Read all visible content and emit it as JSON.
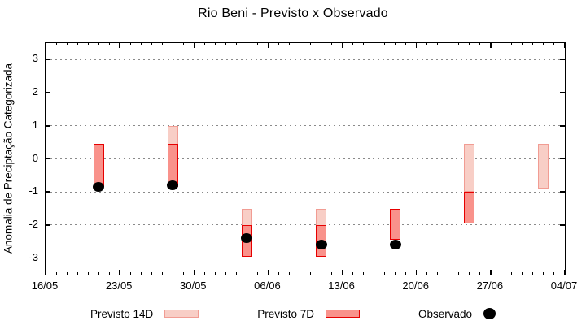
{
  "title": "Rio Beni - Previsto x Observado",
  "chart_data": {
    "type": "bar",
    "subtype": "forecast-range-bars-with-observed-scatter",
    "title": "Rio Beni - Previsto x Observado",
    "xlabel": "",
    "ylabel": "Anomalia de Preciptação Categorizada",
    "ylim": [
      -3.5,
      3.5
    ],
    "yticks": [
      3,
      2,
      1,
      0,
      -1,
      -2,
      -3
    ],
    "x_axis": {
      "start_label": "16/05",
      "end_label": "04/07",
      "range_days": [
        0,
        49
      ],
      "major_tick_days": [
        0,
        7,
        14,
        21,
        28,
        35,
        42,
        49
      ],
      "tick_labels": [
        "16/05",
        "23/05",
        "30/05",
        "06/06",
        "13/06",
        "20/06",
        "27/06",
        "04/07"
      ],
      "minor_tick_interval_days": 1
    },
    "grid": "horizontal dotted",
    "legend_position": "bottom",
    "colors": {
      "previsto14_fill": "#f8cec6",
      "previsto14_border": "#f19c93",
      "previsto7_fill": "#f9928b",
      "previsto7_border": "#e60000",
      "observado": "#000000",
      "gridline": "#8a8a8a"
    },
    "series": [
      {
        "name": "Previsto 14D",
        "type": "range_bar",
        "fill": "#f8cec6",
        "border": "#f19c93",
        "points": [
          {
            "date": "28/05",
            "day": 12,
            "high": 1.0,
            "low": -0.85
          },
          {
            "date": "04/06",
            "day": 19,
            "high": -1.5,
            "low": -2.95
          },
          {
            "date": "11/06",
            "day": 26,
            "high": -1.5,
            "low": -2.95
          },
          {
            "date": "25/06",
            "day": 40,
            "high": 0.45,
            "low": -1.0
          },
          {
            "date": "02/07",
            "day": 47,
            "high": 0.45,
            "low": -0.9
          }
        ]
      },
      {
        "name": "Previsto 7D",
        "type": "range_bar",
        "fill": "#f9928b",
        "border": "#e60000",
        "points": [
          {
            "date": "21/05",
            "day": 5,
            "high": 0.45,
            "low": -0.85
          },
          {
            "date": "28/05",
            "day": 12,
            "high": 0.45,
            "low": -0.85
          },
          {
            "date": "04/06",
            "day": 19,
            "high": -2.0,
            "low": -2.95
          },
          {
            "date": "11/06",
            "day": 26,
            "high": -2.0,
            "low": -2.95
          },
          {
            "date": "18/06",
            "day": 33,
            "high": -1.5,
            "low": -2.45
          },
          {
            "date": "25/06",
            "day": 40,
            "high": -1.0,
            "low": -1.95
          }
        ]
      },
      {
        "name": "Observado",
        "type": "scatter",
        "color": "#000000",
        "points": [
          {
            "date": "21/05",
            "day": 5,
            "value": -0.85
          },
          {
            "date": "28/05",
            "day": 12,
            "value": -0.8
          },
          {
            "date": "04/06",
            "day": 19,
            "value": -2.4
          },
          {
            "date": "11/06",
            "day": 26,
            "value": -2.6
          },
          {
            "date": "18/06",
            "day": 33,
            "value": -2.6
          }
        ]
      }
    ]
  }
}
